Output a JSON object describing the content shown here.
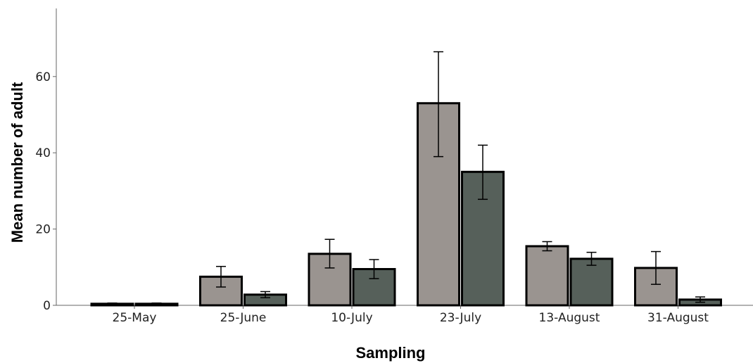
{
  "chart_data": {
    "type": "bar",
    "title": "",
    "xlabel": "Sampling",
    "ylabel": "Mean number of adult",
    "categories": [
      "25-May",
      "25-June",
      "10-July",
      "23-July",
      "13-August",
      "31-August"
    ],
    "ylim": [
      0,
      75
    ],
    "yticks": [
      0,
      20,
      40,
      60
    ],
    "grid": false,
    "legend": "none",
    "series": [
      {
        "color": "#9a9490",
        "values": [
          0.4,
          7.5,
          13.5,
          53,
          15.5,
          9.8
        ],
        "error_low": [
          0.2,
          4.8,
          9.8,
          39,
          14.3,
          5.5
        ],
        "error_high": [
          0.6,
          10.2,
          17.3,
          66.5,
          16.7,
          14.1
        ]
      },
      {
        "color": "#56605a",
        "values": [
          0.4,
          2.8,
          9.5,
          35,
          12.2,
          1.5
        ],
        "error_low": [
          0.2,
          2.0,
          7.0,
          27.8,
          10.5,
          0.8
        ],
        "error_high": [
          0.6,
          3.6,
          12.0,
          42.0,
          13.9,
          2.2
        ]
      }
    ]
  }
}
